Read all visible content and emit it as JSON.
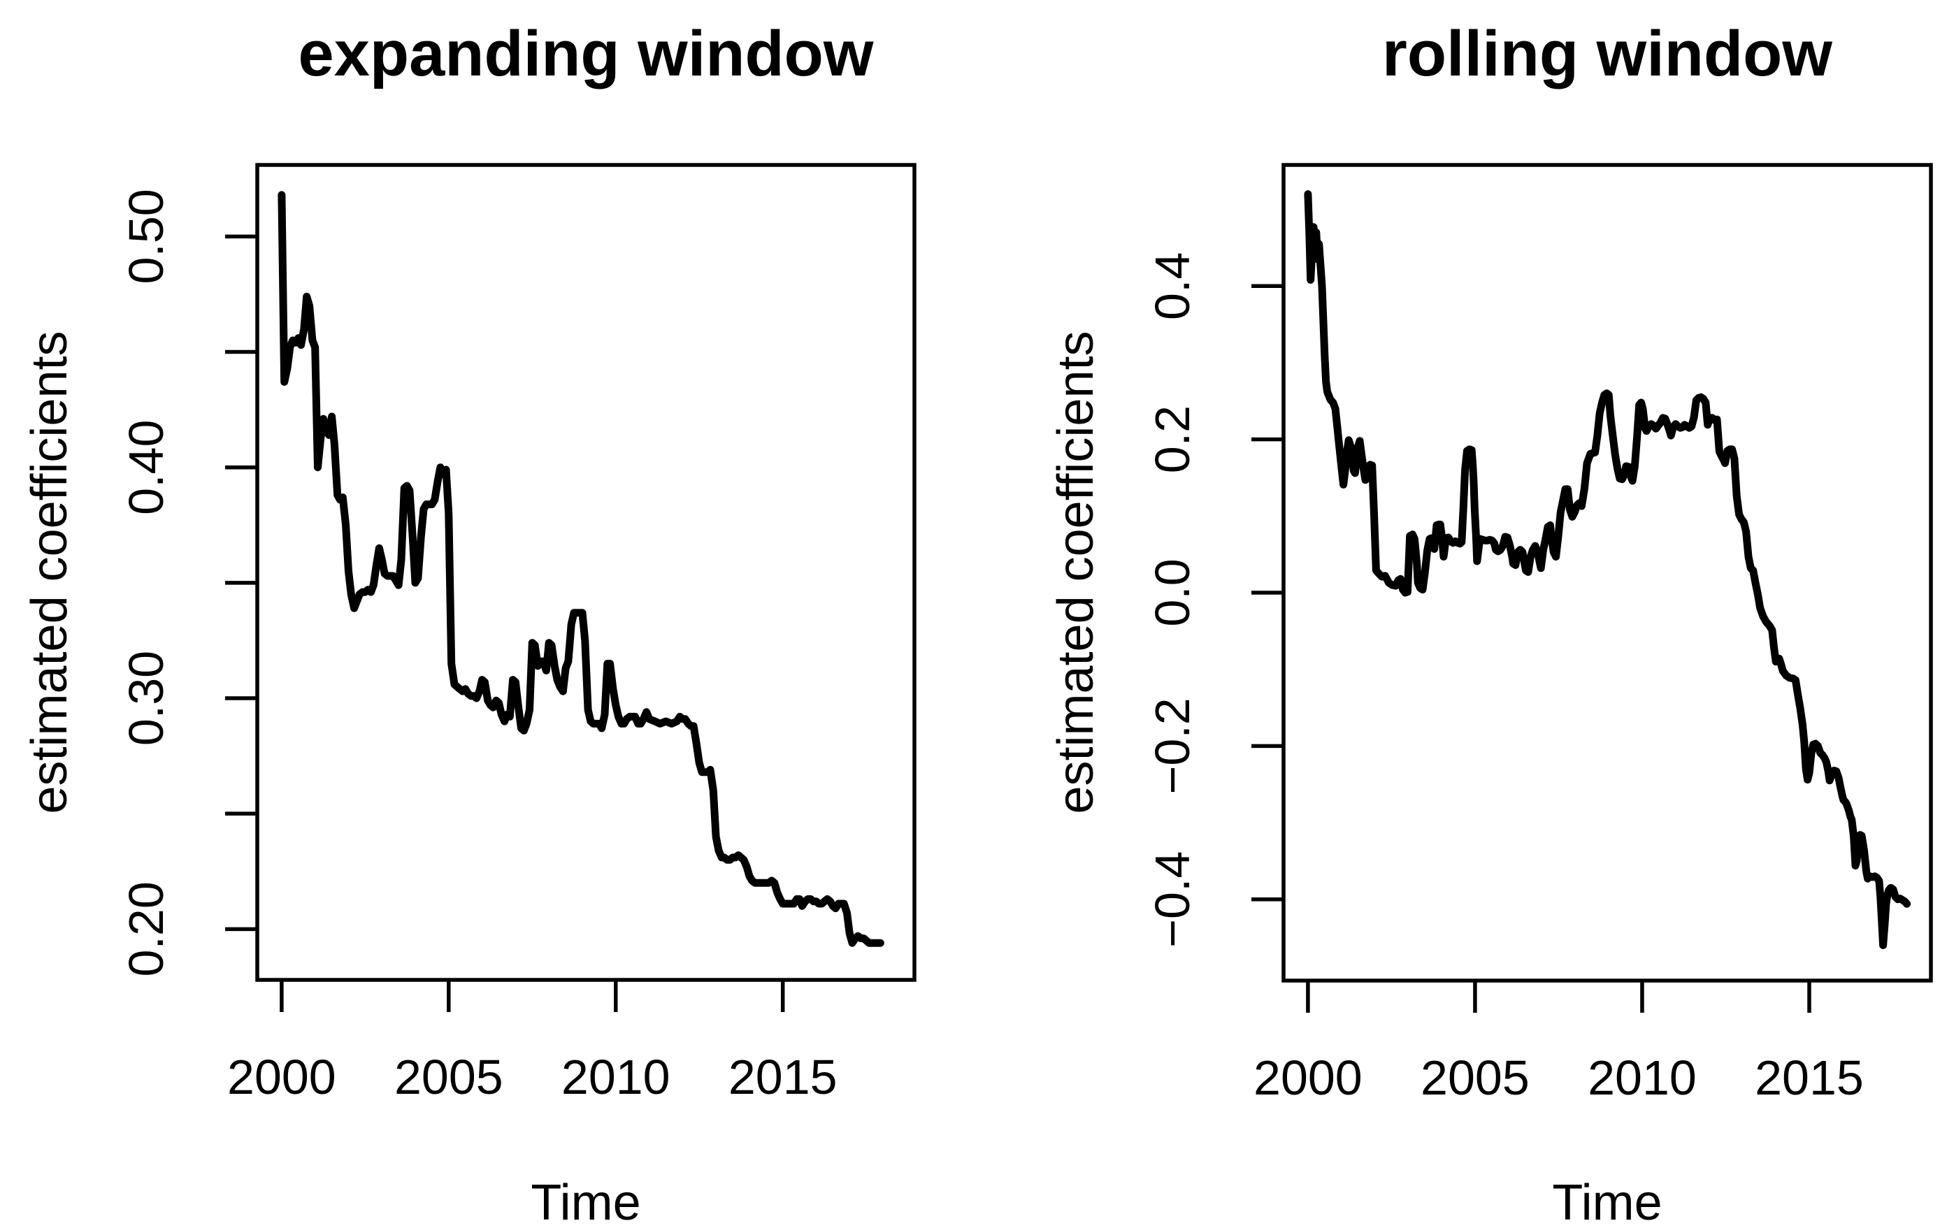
{
  "figure": {
    "background": "#ffffff",
    "foreground": "#000000",
    "line_color": "#000000"
  },
  "chart_data": [
    {
      "type": "line",
      "title": "expanding window",
      "xlabel": "Time",
      "ylabel": "estimated coefficients",
      "legend": null,
      "grid": false,
      "line_color": "#000000",
      "xlim": [
        1999.27,
        2018.94
      ],
      "ylim": [
        0.178,
        0.531
      ],
      "x_ticks": [
        {
          "v": 2000,
          "label": "2000"
        },
        {
          "v": 2005,
          "label": "2005"
        },
        {
          "v": 2010,
          "label": "2010"
        },
        {
          "v": 2015,
          "label": "2015"
        }
      ],
      "y_ticks": [
        {
          "v": 0.2,
          "label": "0.20"
        },
        {
          "v": 0.25,
          "label": ""
        },
        {
          "v": 0.3,
          "label": "0.30"
        },
        {
          "v": 0.35,
          "label": ""
        },
        {
          "v": 0.4,
          "label": "0.40"
        },
        {
          "v": 0.45,
          "label": ""
        },
        {
          "v": 0.5,
          "label": "0.50"
        }
      ],
      "t": [
        2000.0,
        2000.08,
        2000.17,
        2000.25,
        2000.33,
        2000.42,
        2000.5,
        2000.58,
        2000.67,
        2000.75,
        2000.83,
        2000.92,
        2001.0,
        2001.08,
        2001.17,
        2001.25,
        2001.33,
        2001.42,
        2001.5,
        2001.58,
        2001.67,
        2001.75,
        2001.83,
        2001.92,
        2002.0,
        2002.08,
        2002.17,
        2002.25,
        2002.33,
        2002.42,
        2002.5,
        2002.58,
        2002.67,
        2002.75,
        2002.83,
        2002.92,
        2003.0,
        2003.08,
        2003.17,
        2003.25,
        2003.33,
        2003.42,
        2003.5,
        2003.58,
        2003.67,
        2003.75,
        2003.83,
        2003.92,
        2004.0,
        2004.08,
        2004.17,
        2004.25,
        2004.33,
        2004.42,
        2004.5,
        2004.58,
        2004.67,
        2004.75,
        2004.83,
        2004.92,
        2005.0,
        2005.08,
        2005.17,
        2005.25,
        2005.33,
        2005.42,
        2005.5,
        2005.58,
        2005.67,
        2005.75,
        2005.83,
        2005.92,
        2006.0,
        2006.08,
        2006.17,
        2006.25,
        2006.33,
        2006.42,
        2006.5,
        2006.58,
        2006.67,
        2006.75,
        2006.83,
        2006.92,
        2007.0,
        2007.08,
        2007.17,
        2007.25,
        2007.33,
        2007.42,
        2007.5,
        2007.58,
        2007.67,
        2007.75,
        2007.83,
        2007.92,
        2008.0,
        2008.08,
        2008.17,
        2008.25,
        2008.33,
        2008.42,
        2008.5,
        2008.58,
        2008.67,
        2008.75,
        2008.83,
        2008.92,
        2009.0,
        2009.08,
        2009.17,
        2009.25,
        2009.33,
        2009.42,
        2009.5,
        2009.58,
        2009.67,
        2009.75,
        2009.83,
        2009.92,
        2010.0,
        2010.08,
        2010.17,
        2010.25,
        2010.33,
        2010.42,
        2010.5,
        2010.58,
        2010.67,
        2010.75,
        2010.83,
        2010.92,
        2011.0,
        2011.17,
        2011.33,
        2011.5,
        2011.67,
        2011.83,
        2011.92,
        2012.0,
        2012.08,
        2012.17,
        2012.25,
        2012.33,
        2012.42,
        2012.5,
        2012.58,
        2012.67,
        2012.75,
        2012.83,
        2012.92,
        2013.0,
        2013.08,
        2013.17,
        2013.25,
        2013.33,
        2013.42,
        2013.5,
        2013.58,
        2013.67,
        2013.75,
        2013.83,
        2013.92,
        2014.0,
        2014.08,
        2014.17,
        2014.25,
        2014.33,
        2014.42,
        2014.5,
        2014.58,
        2014.67,
        2014.75,
        2014.83,
        2014.92,
        2015.0,
        2015.08,
        2015.17,
        2015.25,
        2015.33,
        2015.42,
        2015.5,
        2015.58,
        2015.67,
        2015.75,
        2015.83,
        2015.92,
        2016.0,
        2016.08,
        2016.17,
        2016.25,
        2016.33,
        2016.42,
        2016.5,
        2016.58,
        2016.67,
        2016.75,
        2016.83,
        2016.92,
        2017.0,
        2017.08,
        2017.17,
        2017.25,
        2017.33,
        2017.42,
        2017.5,
        2017.58,
        2017.67,
        2017.75,
        2017.83,
        2017.92
      ],
      "v": [
        0.518,
        0.437,
        0.443,
        0.452,
        0.455,
        0.454,
        0.456,
        0.453,
        0.46,
        0.474,
        0.47,
        0.455,
        0.452,
        0.4,
        0.413,
        0.421,
        0.416,
        0.414,
        0.422,
        0.41,
        0.388,
        0.386,
        0.387,
        0.375,
        0.355,
        0.345,
        0.339,
        0.342,
        0.345,
        0.346,
        0.346,
        0.347,
        0.346,
        0.349,
        0.357,
        0.365,
        0.36,
        0.354,
        0.353,
        0.353,
        0.353,
        0.351,
        0.349,
        0.36,
        0.391,
        0.392,
        0.39,
        0.37,
        0.35,
        0.352,
        0.37,
        0.382,
        0.384,
        0.384,
        0.384,
        0.386,
        0.394,
        0.4,
        0.397,
        0.399,
        0.38,
        0.315,
        0.306,
        0.305,
        0.304,
        0.303,
        0.304,
        0.302,
        0.301,
        0.301,
        0.3,
        0.303,
        0.308,
        0.307,
        0.299,
        0.297,
        0.296,
        0.299,
        0.298,
        0.293,
        0.29,
        0.293,
        0.292,
        0.308,
        0.307,
        0.297,
        0.287,
        0.286,
        0.289,
        0.295,
        0.324,
        0.323,
        0.314,
        0.316,
        0.316,
        0.312,
        0.324,
        0.323,
        0.314,
        0.308,
        0.305,
        0.303,
        0.313,
        0.316,
        0.332,
        0.337,
        0.337,
        0.337,
        0.337,
        0.325,
        0.295,
        0.29,
        0.289,
        0.289,
        0.289,
        0.287,
        0.293,
        0.315,
        0.315,
        0.304,
        0.297,
        0.292,
        0.289,
        0.289,
        0.291,
        0.292,
        0.292,
        0.292,
        0.289,
        0.289,
        0.291,
        0.294,
        0.291,
        0.29,
        0.289,
        0.29,
        0.289,
        0.29,
        0.292,
        0.291,
        0.291,
        0.289,
        0.288,
        0.288,
        0.28,
        0.272,
        0.268,
        0.268,
        0.268,
        0.269,
        0.26,
        0.24,
        0.234,
        0.231,
        0.231,
        0.23,
        0.23,
        0.231,
        0.231,
        0.232,
        0.231,
        0.23,
        0.227,
        0.223,
        0.221,
        0.22,
        0.22,
        0.22,
        0.22,
        0.22,
        0.22,
        0.221,
        0.22,
        0.216,
        0.213,
        0.211,
        0.211,
        0.211,
        0.211,
        0.211,
        0.213,
        0.213,
        0.21,
        0.212,
        0.213,
        0.213,
        0.212,
        0.212,
        0.211,
        0.211,
        0.212,
        0.213,
        0.212,
        0.21,
        0.209,
        0.211,
        0.211,
        0.211,
        0.207,
        0.198,
        0.194,
        0.196,
        0.197,
        0.196,
        0.196,
        0.195,
        0.194,
        0.194,
        0.194,
        0.194,
        0.194
      ]
    },
    {
      "type": "line",
      "title": "rolling window",
      "xlabel": "Time",
      "ylabel": "estimated coefficients",
      "legend": null,
      "grid": false,
      "line_color": "#000000",
      "xlim": [
        1999.27,
        2018.64
      ],
      "ylim": [
        -0.506,
        0.558
      ],
      "x_ticks": [
        {
          "v": 2000,
          "label": "2000"
        },
        {
          "v": 2005,
          "label": "2005"
        },
        {
          "v": 2010,
          "label": "2010"
        },
        {
          "v": 2015,
          "label": "2015"
        }
      ],
      "y_ticks": [
        {
          "v": -0.4,
          "label": "−0.4"
        },
        {
          "v": -0.2,
          "label": "−0.2"
        },
        {
          "v": 0.0,
          "label": "0.0"
        },
        {
          "v": 0.2,
          "label": "0.2"
        },
        {
          "v": 0.4,
          "label": "0.4"
        }
      ],
      "t": [
        2000.0,
        2000.04,
        2000.08,
        2000.13,
        2000.17,
        2000.21,
        2000.25,
        2000.29,
        2000.33,
        2000.42,
        2000.5,
        2000.54,
        2000.58,
        2000.67,
        2000.75,
        2000.82,
        2000.88,
        2000.94,
        2001.0,
        2001.06,
        2001.13,
        2001.17,
        2001.22,
        2001.3,
        2001.37,
        2001.41,
        2001.48,
        2001.55,
        2001.65,
        2001.72,
        2001.79,
        2001.86,
        2001.92,
        2001.98,
        2002.04,
        2002.1,
        2002.21,
        2002.31,
        2002.42,
        2002.52,
        2002.63,
        2002.7,
        2002.77,
        2002.84,
        2002.91,
        2002.98,
        2003.05,
        2003.13,
        2003.19,
        2003.26,
        2003.29,
        2003.36,
        2003.43,
        2003.5,
        2003.57,
        2003.64,
        2003.68,
        2003.74,
        2003.78,
        2003.85,
        2003.92,
        2003.96,
        2004.01,
        2004.06,
        2004.13,
        2004.2,
        2004.27,
        2004.34,
        2004.41,
        2004.48,
        2004.55,
        2004.6,
        2004.65,
        2004.7,
        2004.76,
        2004.83,
        2004.9,
        2004.93,
        2004.96,
        2004.99,
        2005.03,
        2005.06,
        2005.1,
        2005.13,
        2005.16,
        2005.23,
        2005.3,
        2005.37,
        2005.44,
        2005.51,
        2005.58,
        2005.62,
        2005.69,
        2005.76,
        2005.83,
        2005.9,
        2005.97,
        2006.04,
        2006.11,
        2006.14,
        2006.21,
        2006.28,
        2006.35,
        2006.42,
        2006.49,
        2006.52,
        2006.59,
        2006.66,
        2006.73,
        2006.8,
        2006.87,
        2006.94,
        2006.97,
        2007.04,
        2007.11,
        2007.18,
        2007.25,
        2007.28,
        2007.35,
        2007.42,
        2007.49,
        2007.56,
        2007.63,
        2007.7,
        2007.77,
        2007.84,
        2007.91,
        2007.98,
        2008.05,
        2008.12,
        2008.19,
        2008.27,
        2008.35,
        2008.45,
        2008.52,
        2008.59,
        2008.66,
        2008.73,
        2008.8,
        2008.87,
        2008.94,
        2009.0,
        2009.05,
        2009.12,
        2009.19,
        2009.26,
        2009.33,
        2009.4,
        2009.47,
        2009.52,
        2009.61,
        2009.68,
        2009.71,
        2009.78,
        2009.85,
        2009.91,
        2009.97,
        2010.02,
        2010.09,
        2010.13,
        2010.2,
        2010.27,
        2010.34,
        2010.41,
        2010.48,
        2010.55,
        2010.62,
        2010.69,
        2010.76,
        2010.83,
        2010.86,
        2010.93,
        2011.0,
        2011.07,
        2011.14,
        2011.21,
        2011.27,
        2011.34,
        2011.41,
        2011.48,
        2011.55,
        2011.62,
        2011.69,
        2011.76,
        2011.83,
        2011.9,
        2011.96,
        2012.03,
        2012.1,
        2012.17,
        2012.24,
        2012.31,
        2012.38,
        2012.45,
        2012.48,
        2012.55,
        2012.62,
        2012.69,
        2012.76,
        2012.83,
        2012.9,
        2012.97,
        2013.04,
        2013.11,
        2013.18,
        2013.25,
        2013.32,
        2013.39,
        2013.46,
        2013.53,
        2013.62,
        2013.71,
        2013.81,
        2013.89,
        2013.94,
        2014.0,
        2014.06,
        2014.1,
        2014.16,
        2014.21,
        2014.31,
        2014.41,
        2014.52,
        2014.59,
        2014.66,
        2014.73,
        2014.8,
        2014.85,
        2014.9,
        2014.95,
        2015.0,
        2015.06,
        2015.12,
        2015.19,
        2015.26,
        2015.33,
        2015.4,
        2015.46,
        2015.51,
        2015.57,
        2015.61,
        2015.68,
        2015.74,
        2015.81,
        2015.88,
        2015.92,
        2015.98,
        2016.02,
        2016.08,
        2016.12,
        2016.19,
        2016.23,
        2016.27,
        2016.33,
        2016.38,
        2016.42,
        2016.47,
        2016.52,
        2016.57,
        2016.64,
        2016.71,
        2016.75,
        2016.82,
        2016.89,
        2016.96,
        2017.03,
        2017.09,
        2017.13,
        2017.17,
        2017.21,
        2017.26,
        2017.3,
        2017.34,
        2017.38,
        2017.44,
        2017.51,
        2017.58,
        2017.65,
        2017.72,
        2017.79,
        2017.86,
        2017.92
      ],
      "v": [
        0.52,
        0.47,
        0.408,
        0.45,
        0.477,
        0.462,
        0.47,
        0.435,
        0.455,
        0.4,
        0.31,
        0.275,
        0.262,
        0.252,
        0.248,
        0.24,
        0.215,
        0.19,
        0.165,
        0.141,
        0.165,
        0.185,
        0.199,
        0.188,
        0.159,
        0.156,
        0.188,
        0.198,
        0.165,
        0.147,
        0.164,
        0.167,
        0.166,
        0.1,
        0.029,
        0.026,
        0.021,
        0.022,
        0.013,
        0.01,
        0.009,
        0.016,
        0.018,
        0.004,
        0.0,
        0.001,
        0.074,
        0.076,
        0.07,
        0.038,
        0.013,
        0.006,
        0.004,
        0.026,
        0.055,
        0.07,
        0.071,
        0.06,
        0.057,
        0.088,
        0.089,
        0.089,
        0.072,
        0.047,
        0.071,
        0.072,
        0.067,
        0.065,
        0.067,
        0.065,
        0.064,
        0.066,
        0.11,
        0.16,
        0.185,
        0.187,
        0.186,
        0.168,
        0.144,
        0.108,
        0.074,
        0.041,
        0.055,
        0.065,
        0.07,
        0.069,
        0.068,
        0.068,
        0.069,
        0.068,
        0.064,
        0.056,
        0.054,
        0.056,
        0.061,
        0.073,
        0.072,
        0.062,
        0.047,
        0.038,
        0.036,
        0.053,
        0.056,
        0.053,
        0.036,
        0.029,
        0.027,
        0.047,
        0.056,
        0.061,
        0.053,
        0.038,
        0.032,
        0.056,
        0.07,
        0.086,
        0.088,
        0.074,
        0.053,
        0.047,
        0.074,
        0.105,
        0.12,
        0.135,
        0.135,
        0.108,
        0.099,
        0.105,
        0.114,
        0.117,
        0.113,
        0.135,
        0.169,
        0.181,
        0.182,
        0.183,
        0.205,
        0.234,
        0.248,
        0.258,
        0.26,
        0.258,
        0.231,
        0.205,
        0.181,
        0.162,
        0.149,
        0.148,
        0.154,
        0.165,
        0.164,
        0.149,
        0.146,
        0.165,
        0.205,
        0.245,
        0.248,
        0.24,
        0.214,
        0.211,
        0.217,
        0.22,
        0.218,
        0.214,
        0.218,
        0.222,
        0.228,
        0.227,
        0.219,
        0.21,
        0.205,
        0.216,
        0.22,
        0.217,
        0.215,
        0.216,
        0.219,
        0.217,
        0.215,
        0.217,
        0.229,
        0.251,
        0.254,
        0.255,
        0.253,
        0.248,
        0.219,
        0.228,
        0.228,
        0.225,
        0.226,
        0.184,
        0.178,
        0.172,
        0.169,
        0.185,
        0.187,
        0.187,
        0.175,
        0.126,
        0.102,
        0.096,
        0.092,
        0.08,
        0.047,
        0.032,
        0.029,
        0.013,
        -0.002,
        -0.02,
        -0.031,
        -0.038,
        -0.043,
        -0.049,
        -0.07,
        -0.09,
        -0.088,
        -0.086,
        -0.094,
        -0.102,
        -0.108,
        -0.111,
        -0.112,
        -0.114,
        -0.133,
        -0.151,
        -0.172,
        -0.195,
        -0.23,
        -0.244,
        -0.235,
        -0.21,
        -0.198,
        -0.197,
        -0.2,
        -0.209,
        -0.212,
        -0.216,
        -0.221,
        -0.233,
        -0.245,
        -0.236,
        -0.232,
        -0.233,
        -0.242,
        -0.251,
        -0.263,
        -0.27,
        -0.273,
        -0.276,
        -0.285,
        -0.292,
        -0.296,
        -0.318,
        -0.356,
        -0.35,
        -0.324,
        -0.316,
        -0.317,
        -0.336,
        -0.364,
        -0.373,
        -0.37,
        -0.371,
        -0.37,
        -0.372,
        -0.376,
        -0.397,
        -0.428,
        -0.46,
        -0.432,
        -0.406,
        -0.394,
        -0.388,
        -0.385,
        -0.387,
        -0.397,
        -0.4,
        -0.399,
        -0.401,
        -0.403,
        -0.406
      ]
    }
  ]
}
